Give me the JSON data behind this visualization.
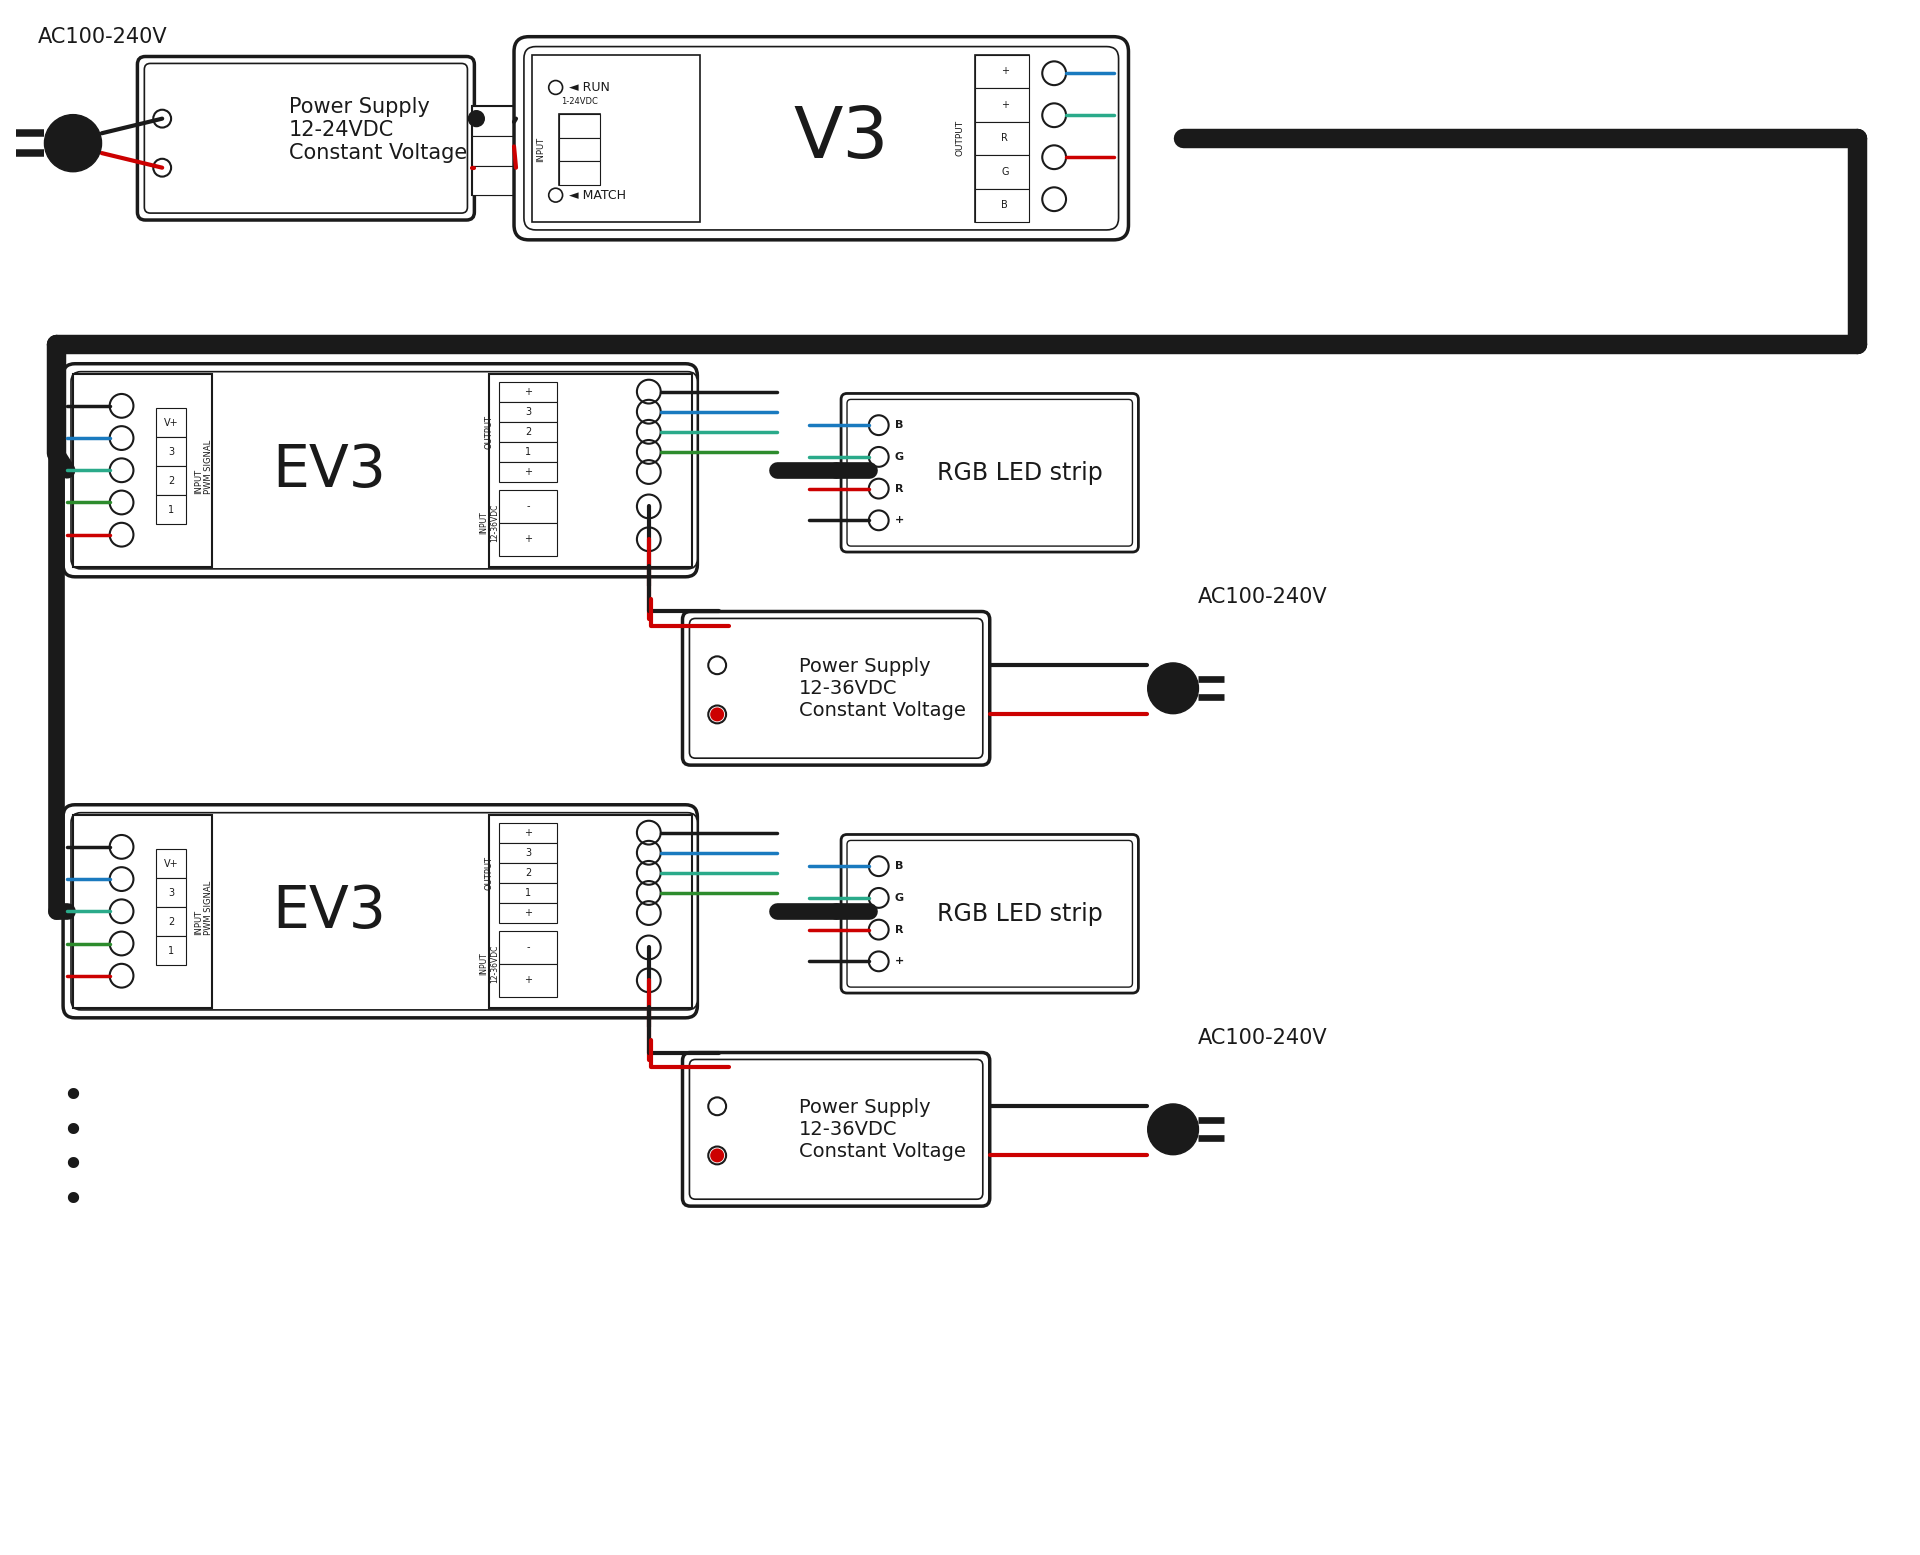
{
  "bg_color": "#ffffff",
  "lc": "#1a1a1a",
  "rc": "#cc0000",
  "bc": "#1a7abf",
  "gc": "#2d8c2d",
  "tc": "#2aaa8a",
  "ps_top_label": "Power Supply\n12-24VDC\nConstant Voltage",
  "ps_amp_label": "Power Supply\n12-36VDC\nConstant Voltage",
  "ps_amp2_label": "Power Supply\n12-36VDC\nConstant Voltage",
  "ac_label_top": "AC100-240V",
  "ac_label2": "AC100-240V",
  "ac_label3": "AC100-240V",
  "v3_label": "V3",
  "ev3_label": "EV3",
  "ev3_label2": "EV3",
  "rgb_strip_label": "RGB LED strip",
  "rgb_strip2_label": "RGB LED strip",
  "input_pwm": "INPUT\nPWM SIGNAL",
  "output_lbl": "OUTPUT",
  "input_vdc": "INPUT\n12-36VDC",
  "run_lbl": "◄ RUN",
  "match_lbl": "◄ MATCH",
  "dots": "• • • •"
}
